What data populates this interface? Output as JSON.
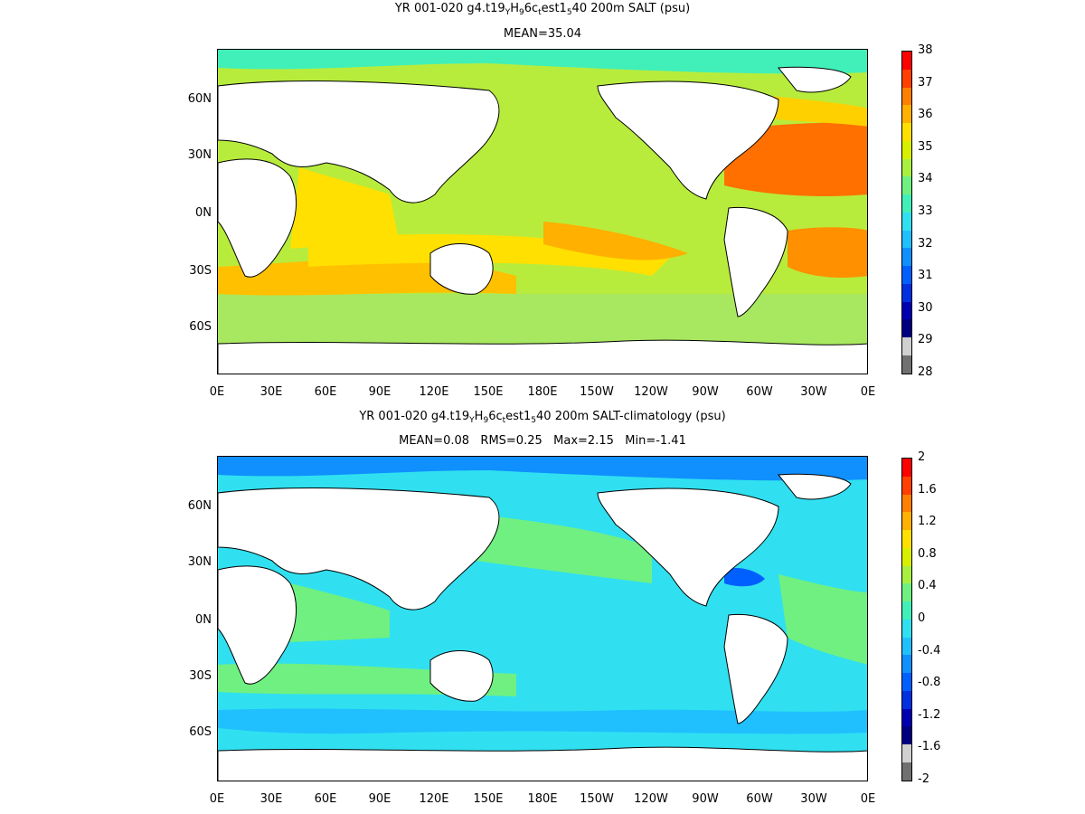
{
  "panels": [
    {
      "title_parts": [
        "YR 001-020 g4.t19",
        "Y",
        "H",
        "9",
        "6c",
        "t",
        "est1",
        "5",
        "40 200m SALT (psu)"
      ],
      "subtitle": "MEAN=35.04",
      "colorbar_labels": [
        "38",
        "37",
        "36",
        "35",
        "34",
        "33",
        "32",
        "31",
        "30",
        "29",
        "28"
      ]
    },
    {
      "title_parts": [
        "YR 001-020 g4.t19",
        "Y",
        "H",
        "9",
        "6c",
        "t",
        "est1",
        "5",
        "40 200m SALT-climatology (psu)"
      ],
      "subtitle": "MEAN=0.08   RMS=0.25   Max=2.15   Min=-1.41",
      "colorbar_labels": [
        "2",
        "1.6",
        "1.2",
        "0.8",
        "0.4",
        "0",
        "-0.4",
        "-0.8",
        "-1.2",
        "-1.6",
        "-2"
      ]
    }
  ],
  "lat_labels": [
    "60N",
    "30N",
    "0N",
    "30S",
    "60S"
  ],
  "lon_labels": [
    "0E",
    "30E",
    "60E",
    "90E",
    "120E",
    "150E",
    "180E",
    "150W",
    "120W",
    "90W",
    "60W",
    "30W",
    "0E"
  ],
  "colorbar_colors": [
    "#ff0000",
    "#ff4000",
    "#ff8000",
    "#ffb000",
    "#ffe000",
    "#d8f000",
    "#a8f040",
    "#70f080",
    "#40f0b8",
    "#30e0f0",
    "#20c0ff",
    "#1090ff",
    "#0060ff",
    "#0030e0",
    "#0000b0",
    "#000080",
    "#d0d0d0",
    "#707070"
  ]
}
